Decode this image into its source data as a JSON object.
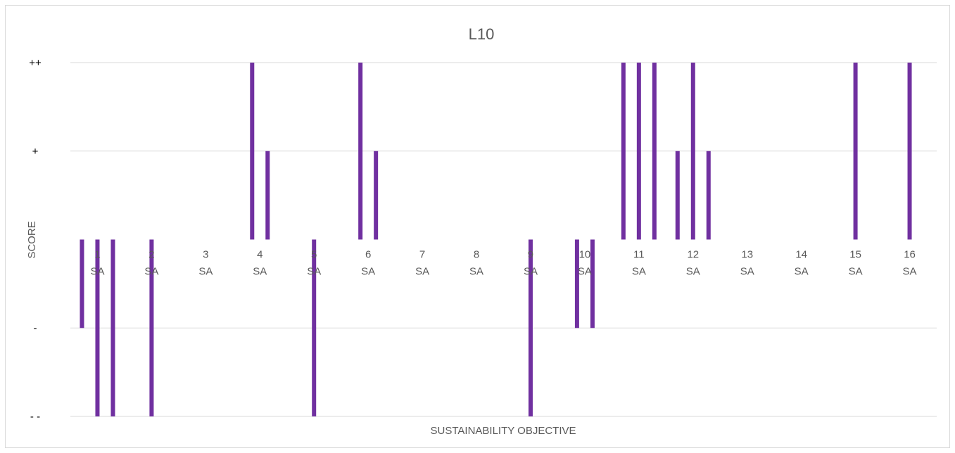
{
  "chart_data": {
    "type": "bar",
    "title": "L10",
    "xlabel": "SUSTAINABILITY OBJECTIVE",
    "ylabel": "SCORE",
    "y_tick_labels": [
      "- -",
      "-",
      "",
      "+",
      "++"
    ],
    "ylim": [
      -2,
      2
    ],
    "grid": true,
    "bar_color": "#7030a0",
    "categories": [
      {
        "label": [
          "1",
          "SA"
        ],
        "bars": [
          -1,
          -2,
          -2
        ]
      },
      {
        "label": [
          "2",
          "SA"
        ],
        "bars": [
          -2
        ]
      },
      {
        "label": [
          "3",
          "SA"
        ],
        "bars": []
      },
      {
        "label": [
          "4",
          "SA"
        ],
        "bars": [
          2,
          1
        ]
      },
      {
        "label": [
          "5",
          "SA"
        ],
        "bars": [
          -2
        ]
      },
      {
        "label": [
          "6",
          "SA"
        ],
        "bars": [
          2,
          1
        ]
      },
      {
        "label": [
          "7",
          "SA"
        ],
        "bars": []
      },
      {
        "label": [
          "8",
          "SA"
        ],
        "bars": []
      },
      {
        "label": [
          "9",
          "SA"
        ],
        "bars": [
          -2
        ]
      },
      {
        "label": [
          "10",
          "SA"
        ],
        "bars": [
          -1,
          -1
        ]
      },
      {
        "label": [
          "11",
          "SA"
        ],
        "bars": [
          2,
          2,
          2
        ]
      },
      {
        "label": [
          "12",
          "SA"
        ],
        "bars": [
          1,
          2,
          1
        ]
      },
      {
        "label": [
          "13",
          "SA"
        ],
        "bars": []
      },
      {
        "label": [
          "14",
          "SA"
        ],
        "bars": []
      },
      {
        "label": [
          "15",
          "SA"
        ],
        "bars": [
          2
        ]
      },
      {
        "label": [
          "16",
          "SA"
        ],
        "bars": [
          2
        ]
      }
    ]
  }
}
